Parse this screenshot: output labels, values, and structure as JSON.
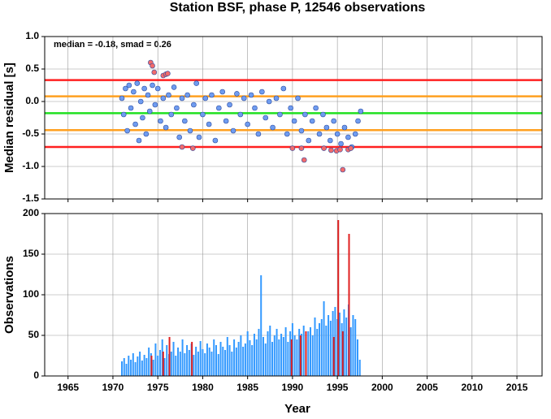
{
  "chart_data": [
    {
      "type": "scatter",
      "title": "Station BSF, phase P, 12546 observations",
      "annotation": "median = -0.18, smad = 0.26",
      "y_label": "Median residual [s]",
      "xlim": [
        1962.4,
        2017.8
      ],
      "xticks": [
        1965,
        1970,
        1975,
        1980,
        1985,
        1990,
        1995,
        2000,
        2005,
        2010,
        2015
      ],
      "ylim": [
        -1.5,
        1.0
      ],
      "yticks": [
        {
          "value": 1.0,
          "label": "1.0"
        },
        0.5,
        {
          "value": 0.0,
          "label": "0.0"
        },
        -0.5,
        {
          "value": -1.0,
          "label": "-1.0"
        },
        -1.5
      ],
      "grid": true,
      "hlines": [
        {
          "value": 0.33,
          "color": "#ff2020"
        },
        {
          "value": 0.08,
          "color": "#ffa020"
        },
        {
          "value": -0.18,
          "color": "#20e020"
        },
        {
          "value": -0.44,
          "color": "#ffa020"
        },
        {
          "value": -0.7,
          "color": "#ff2020"
        }
      ],
      "series": [
        {
          "color": "#6f9cf0",
          "x": [
            1971.0,
            1971.2,
            1971.4,
            1971.6,
            1971.8,
            1972.0,
            1972.3,
            1972.5,
            1972.7,
            1972.9,
            1973.1,
            1973.3,
            1973.5,
            1973.7,
            1973.9,
            1974.1,
            1974.4,
            1974.7,
            1975.0,
            1975.3,
            1975.6,
            1975.9,
            1976.2,
            1976.5,
            1976.8,
            1977.1,
            1977.4,
            1977.7,
            1978.0,
            1978.3,
            1978.6,
            1979.0,
            1979.3,
            1979.6,
            1980.0,
            1980.3,
            1980.7,
            1981.0,
            1981.4,
            1981.8,
            1982.2,
            1982.6,
            1983.0,
            1983.4,
            1983.8,
            1984.2,
            1984.6,
            1985.0,
            1985.4,
            1985.8,
            1986.2,
            1986.6,
            1987.0,
            1987.4,
            1987.8,
            1988.2,
            1988.6,
            1989.0,
            1989.4,
            1989.8,
            1990.2,
            1990.6,
            1991.0,
            1991.4,
            1991.8,
            1992.2,
            1992.6,
            1993.0,
            1993.4,
            1993.8,
            1994.2,
            1994.6,
            1995.0,
            1995.4,
            1995.8,
            1996.2,
            1996.6,
            1997.0,
            1997.3,
            1997.6
          ],
          "values": [
            0.05,
            -0.2,
            0.2,
            -0.45,
            0.25,
            -0.1,
            0.15,
            -0.35,
            0.28,
            -0.6,
            0.0,
            -0.25,
            0.2,
            -0.5,
            0.1,
            -0.15,
            0.25,
            -0.05,
            0.2,
            -0.3,
            0.05,
            -0.4,
            0.1,
            -0.2,
            0.22,
            -0.1,
            -0.55,
            0.05,
            -0.3,
            0.1,
            -0.45,
            -0.05,
            0.28,
            -0.55,
            -0.2,
            0.05,
            -0.35,
            0.1,
            -0.6,
            -0.1,
            0.15,
            -0.3,
            -0.05,
            -0.45,
            0.12,
            -0.2,
            0.05,
            -0.35,
            0.1,
            -0.1,
            -0.5,
            0.15,
            -0.25,
            0.0,
            -0.4,
            0.05,
            -0.2,
            0.2,
            -0.5,
            -0.1,
            -0.3,
            0.05,
            -0.45,
            -0.2,
            -0.6,
            -0.3,
            -0.1,
            -0.5,
            -0.2,
            -0.4,
            -0.6,
            -0.3,
            -0.5,
            -0.65,
            -0.4,
            -0.55,
            -0.7,
            -0.5,
            -0.3,
            -0.15
          ]
        },
        {
          "color": "#f26b6b",
          "x": [
            1974.2,
            1974.4,
            1974.6,
            1975.6,
            1975.9,
            1976.1,
            1977.7,
            1978.9,
            1990.0,
            1991.0,
            1991.3,
            1993.5,
            1994.3,
            1994.9,
            1995.3,
            1995.6,
            1996.2,
            1996.5
          ],
          "values": [
            0.6,
            0.55,
            0.45,
            0.4,
            0.42,
            0.43,
            -0.7,
            -0.72,
            -0.72,
            -0.72,
            -0.9,
            -0.72,
            -0.75,
            -0.76,
            -0.74,
            -1.05,
            -0.74,
            -0.72
          ]
        }
      ]
    },
    {
      "type": "bar",
      "x_label": "Year",
      "y_label": "Observations",
      "xlim": [
        1962.4,
        2017.8
      ],
      "xticks": [
        1965,
        1970,
        1975,
        1980,
        1985,
        1990,
        1995,
        2000,
        2005,
        2010,
        2015
      ],
      "ylim": [
        0,
        200
      ],
      "yticks": [
        0,
        50,
        100,
        150,
        200
      ],
      "grid": true,
      "series": [
        {
          "color": "#3399ff",
          "x": [
            1971.0,
            1971.25,
            1971.5,
            1971.75,
            1972.0,
            1972.25,
            1972.5,
            1972.75,
            1973.0,
            1973.25,
            1973.5,
            1973.75,
            1974.0,
            1974.25,
            1974.5,
            1974.75,
            1975.0,
            1975.25,
            1975.5,
            1975.75,
            1976.0,
            1976.25,
            1976.5,
            1976.75,
            1977.0,
            1977.25,
            1977.5,
            1977.75,
            1978.0,
            1978.25,
            1978.5,
            1978.75,
            1979.0,
            1979.25,
            1979.5,
            1979.75,
            1980.0,
            1980.25,
            1980.5,
            1980.75,
            1981.0,
            1981.25,
            1981.5,
            1981.75,
            1982.0,
            1982.25,
            1982.5,
            1982.75,
            1983.0,
            1983.25,
            1983.5,
            1983.75,
            1984.0,
            1984.25,
            1984.5,
            1984.75,
            1985.0,
            1985.25,
            1985.5,
            1985.75,
            1986.0,
            1986.25,
            1986.5,
            1986.75,
            1987.0,
            1987.25,
            1987.5,
            1987.75,
            1988.0,
            1988.25,
            1988.5,
            1988.75,
            1989.0,
            1989.25,
            1989.5,
            1989.75,
            1990.0,
            1990.25,
            1990.5,
            1990.75,
            1991.0,
            1991.25,
            1991.5,
            1991.75,
            1992.0,
            1992.25,
            1992.5,
            1992.75,
            1993.0,
            1993.25,
            1993.5,
            1993.75,
            1994.0,
            1994.25,
            1994.5,
            1994.75,
            1995.0,
            1995.25,
            1995.5,
            1995.75,
            1996.0,
            1996.25,
            1996.5,
            1996.75,
            1997.0,
            1997.25,
            1997.5
          ],
          "values": [
            18,
            22,
            15,
            25,
            20,
            28,
            17,
            24,
            30,
            19,
            26,
            22,
            35,
            28,
            20,
            40,
            25,
            32,
            45,
            22,
            38,
            27,
            30,
            42,
            25,
            35,
            30,
            45,
            28,
            38,
            32,
            40,
            26,
            36,
            30,
            43,
            33,
            28,
            40,
            35,
            30,
            45,
            38,
            27,
            42,
            36,
            32,
            48,
            38,
            30,
            45,
            35,
            42,
            50,
            36,
            40,
            55,
            44,
            38,
            52,
            45,
            58,
            124,
            48,
            40,
            55,
            62,
            42,
            50,
            58,
            45,
            52,
            48,
            60,
            42,
            55,
            65,
            50,
            45,
            58,
            52,
            62,
            48,
            55,
            60,
            50,
            72,
            58,
            65,
            70,
            92,
            62,
            75,
            68,
            80,
            85,
            70,
            78,
            65,
            82,
            72,
            88,
            60,
            75,
            70,
            45,
            20
          ]
        },
        {
          "color": "#e02020",
          "x": [
            1974.3,
            1975.6,
            1976.3,
            1978.8,
            1989.9,
            1990.9,
            1991.5,
            1994.6,
            1995.1,
            1995.6,
            1996.3
          ],
          "values": [
            25,
            30,
            48,
            42,
            45,
            50,
            55,
            48,
            192,
            55,
            175
          ]
        }
      ]
    }
  ]
}
